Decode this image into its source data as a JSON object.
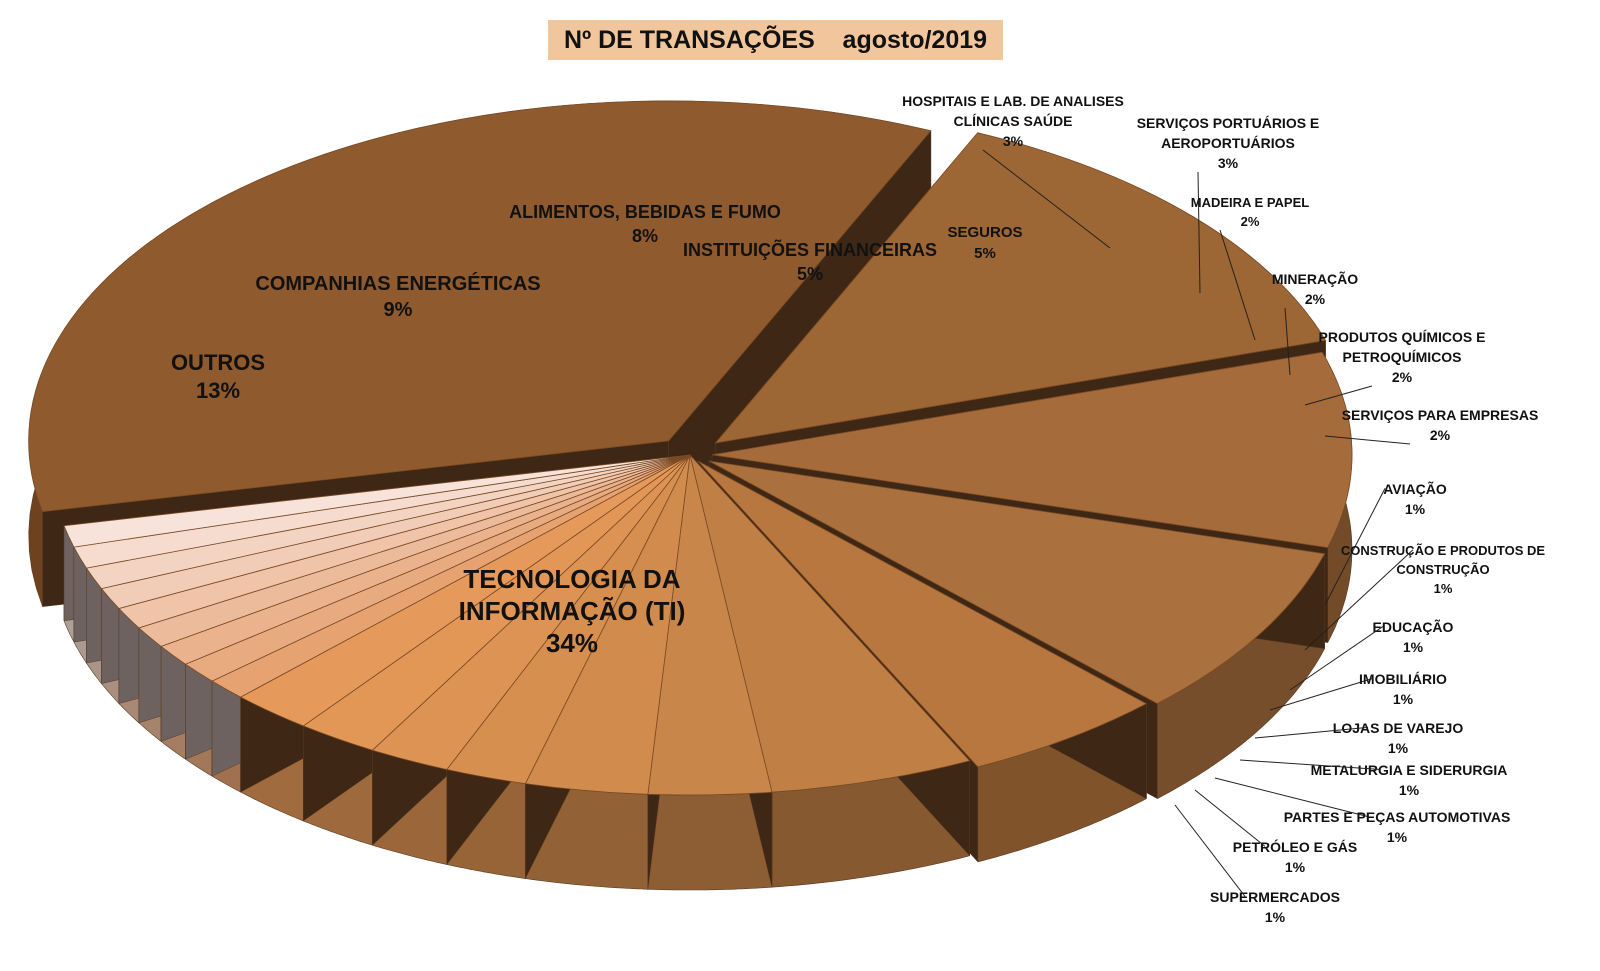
{
  "title": "Nº DE TRANSAÇÕES    agosto/2019",
  "chart_data": {
    "type": "pie",
    "title": "Nº DE TRANSAÇÕES    agosto/2019",
    "slices": [
      {
        "label": "TECNOLOGIA DA INFORMAÇÃO (TI)",
        "value": 34,
        "display": "34%",
        "color": "#8f5a2e"
      },
      {
        "label": "OUTROS",
        "value": 13,
        "display": "13%",
        "color": "#9c6635"
      },
      {
        "label": "COMPANHIAS ENERGÉTICAS",
        "value": 9,
        "display": "9%",
        "color": "#a56b3a"
      },
      {
        "label": "ALIMENTOS, BEBIDAS E FUMO",
        "value": 8,
        "display": "8%",
        "color": "#aa703d"
      },
      {
        "label": "INSTITUIÇÕES FINANCEIRAS",
        "value": 5,
        "display": "5%",
        "color": "#b7773e"
      },
      {
        "label": "SEGUROS",
        "value": 5,
        "display": "5%",
        "color": "#c07f45"
      },
      {
        "label": "HOSPITAIS E LAB. DE ANALISES CLÍNICAS SAÚDE",
        "value": 3,
        "display": "3%",
        "color": "#c9864a"
      },
      {
        "label": "SERVIÇOS PORTUÁRIOS E AEROPORTUÁRIOS",
        "value": 3,
        "display": "3%",
        "color": "#d08b4d"
      },
      {
        "label": "MADEIRA E PAPEL",
        "value": 2,
        "display": "2%",
        "color": "#d78f50"
      },
      {
        "label": "MINERAÇÃO",
        "value": 2,
        "display": "2%",
        "color": "#dd9353"
      },
      {
        "label": "PRODUTOS QUÍMICOS E PETROQUÍMICOS",
        "value": 2,
        "display": "2%",
        "color": "#e29757"
      },
      {
        "label": "SERVIÇOS PARA EMPRESAS",
        "value": 2,
        "display": "2%",
        "color": "#e5995a"
      },
      {
        "label": "AVIAÇÃO",
        "value": 1,
        "display": "1%",
        "color": "#e6a271"
      },
      {
        "label": "CONSTRUÇÃO E PRODUTOS DE CONSTRUÇÃO",
        "value": 1,
        "display": "1%",
        "color": "#e8ab80"
      },
      {
        "label": "EDUCAÇÃO",
        "value": 1,
        "display": "1%",
        "color": "#eab38e"
      },
      {
        "label": "IMOBILIÁRIO",
        "value": 1,
        "display": "1%",
        "color": "#ecbb9b"
      },
      {
        "label": "LOJAS DE VAREJO",
        "value": 1,
        "display": "1%",
        "color": "#efc4a9"
      },
      {
        "label": "METALURGIA E SIDERURGIA",
        "value": 1,
        "display": "1%",
        "color": "#f1ccb6"
      },
      {
        "label": "PARTES E PEÇAS AUTOMOTIVAS",
        "value": 1,
        "display": "1%",
        "color": "#f3d4c2"
      },
      {
        "label": "PETRÓLEO E GÁS",
        "value": 1,
        "display": "1%",
        "color": "#f5dccf"
      },
      {
        "label": "SUPERMERCADOS",
        "value": 1,
        "display": "1%",
        "color": "#f7e3da"
      }
    ]
  }
}
